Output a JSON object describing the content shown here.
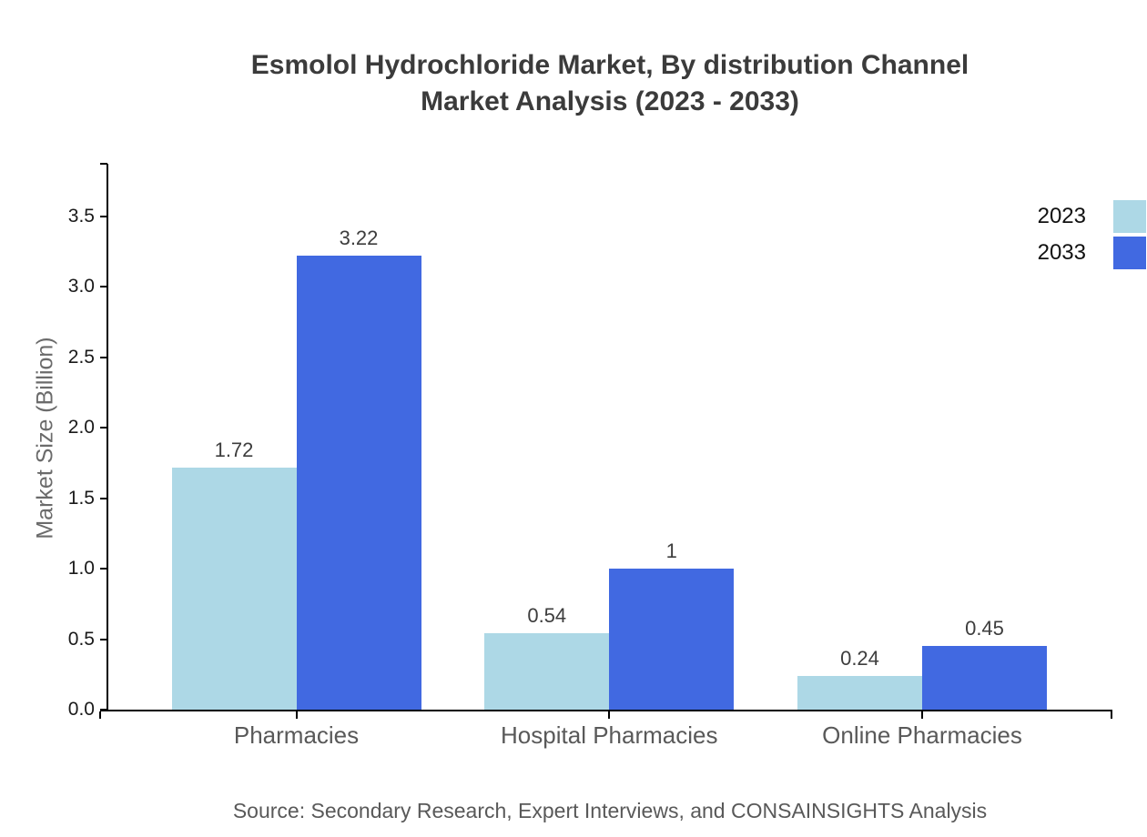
{
  "title_lines": {
    "line1": "Esmolol Hydrochloride Market, By distribution Channel",
    "line2": "Market Analysis (2023 - 2033)"
  },
  "source_text": "Source: Secondary Research, Expert Interviews, and CONSAINSIGHTS Analysis",
  "colors": {
    "series_2023": "#ADD8E6",
    "series_2033": "#4169E1",
    "axis": "#000000",
    "title_text": "#3b3b3b",
    "muted_text": "#595959"
  },
  "chart_data": {
    "type": "bar",
    "title": "Esmolol Hydrochloride Market, By distribution Channel Market Analysis (2023 - 2033)",
    "categories": [
      "Pharmacies",
      "Hospital Pharmacies",
      "Online Pharmacies"
    ],
    "series": [
      {
        "name": "2023",
        "color": "#ADD8E6",
        "values": [
          1.72,
          0.54,
          0.24
        ],
        "labels": [
          "1.72",
          "0.54",
          "0.24"
        ]
      },
      {
        "name": "2033",
        "color": "#4169E1",
        "values": [
          3.22,
          1,
          0.45
        ],
        "labels": [
          "3.22",
          "1",
          "0.45"
        ]
      }
    ],
    "xlabel": "",
    "ylabel": "Market Size (Billion)",
    "yticks": [
      0.0,
      0.5,
      1.0,
      1.5,
      2.0,
      2.5,
      3.0,
      3.5
    ],
    "ytick_labels": [
      "0.0",
      "0.5",
      "1.0",
      "1.5",
      "2.0",
      "2.5",
      "3.0",
      "3.5"
    ],
    "ylim": [
      0,
      3.875
    ],
    "grid": false,
    "legend_position": "top-right"
  }
}
